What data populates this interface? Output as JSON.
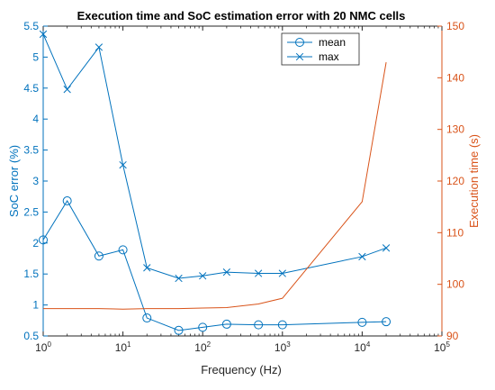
{
  "chart_data": {
    "type": "line",
    "title": "Execution time and SoC estimation error with 20 NMC cells",
    "xlabel": "Frequency (Hz)",
    "xscale": "log",
    "xlim": [
      1,
      100000
    ],
    "x_tick_labels": [
      {
        "base": "10",
        "exp": "0",
        "value": 1
      },
      {
        "base": "10",
        "exp": "1",
        "value": 10
      },
      {
        "base": "10",
        "exp": "2",
        "value": 100
      },
      {
        "base": "10",
        "exp": "3",
        "value": 1000
      },
      {
        "base": "10",
        "exp": "4",
        "value": 10000
      },
      {
        "base": "10",
        "exp": "5",
        "value": 100000
      }
    ],
    "y_left": {
      "label": "SoC error (%)",
      "lim": [
        0.5,
        5.5
      ],
      "ticks": [
        0.5,
        1,
        1.5,
        2,
        2.5,
        3,
        3.5,
        4,
        4.5,
        5,
        5.5
      ],
      "tick_labels": [
        "0.5",
        "1",
        "1.5",
        "2",
        "2.5",
        "3",
        "3.5",
        "4",
        "4.5",
        "5",
        "5.5"
      ],
      "color": "#0072BD"
    },
    "y_right": {
      "label": "Execution time (s)",
      "lim": [
        90,
        150
      ],
      "ticks": [
        90,
        100,
        110,
        120,
        130,
        140,
        150
      ],
      "tick_labels": [
        "90",
        "100",
        "110",
        "120",
        "130",
        "140",
        "150"
      ],
      "color": "#D95319"
    },
    "series": [
      {
        "name": "mean",
        "axis": "left",
        "marker": "circle",
        "color": "#0072BD",
        "x": [
          1,
          2,
          5,
          10,
          20,
          50,
          100,
          200,
          500,
          1000,
          10000,
          20000
        ],
        "y": [
          2.05,
          2.68,
          1.79,
          1.89,
          0.79,
          0.59,
          0.64,
          0.69,
          0.68,
          0.68,
          0.72,
          0.73
        ]
      },
      {
        "name": "max",
        "axis": "left",
        "marker": "x",
        "color": "#0072BD",
        "x": [
          1,
          2,
          5,
          10,
          20,
          50,
          100,
          200,
          500,
          1000,
          10000,
          20000
        ],
        "y": [
          5.37,
          4.48,
          5.16,
          3.26,
          1.6,
          1.43,
          1.47,
          1.53,
          1.51,
          1.51,
          1.78,
          1.92
        ]
      },
      {
        "axis": "right",
        "marker": "none",
        "color": "#D95319",
        "x": [
          1,
          2,
          5,
          10,
          20,
          50,
          100,
          200,
          500,
          1000,
          10000,
          20000
        ],
        "y": [
          95.3,
          95.3,
          95.3,
          95.2,
          95.3,
          95.3,
          95.4,
          95.5,
          96.2,
          97.3,
          116,
          143
        ]
      }
    ],
    "legend": {
      "location": "top-right",
      "entries": [
        "mean",
        "max"
      ]
    },
    "grid": false
  }
}
